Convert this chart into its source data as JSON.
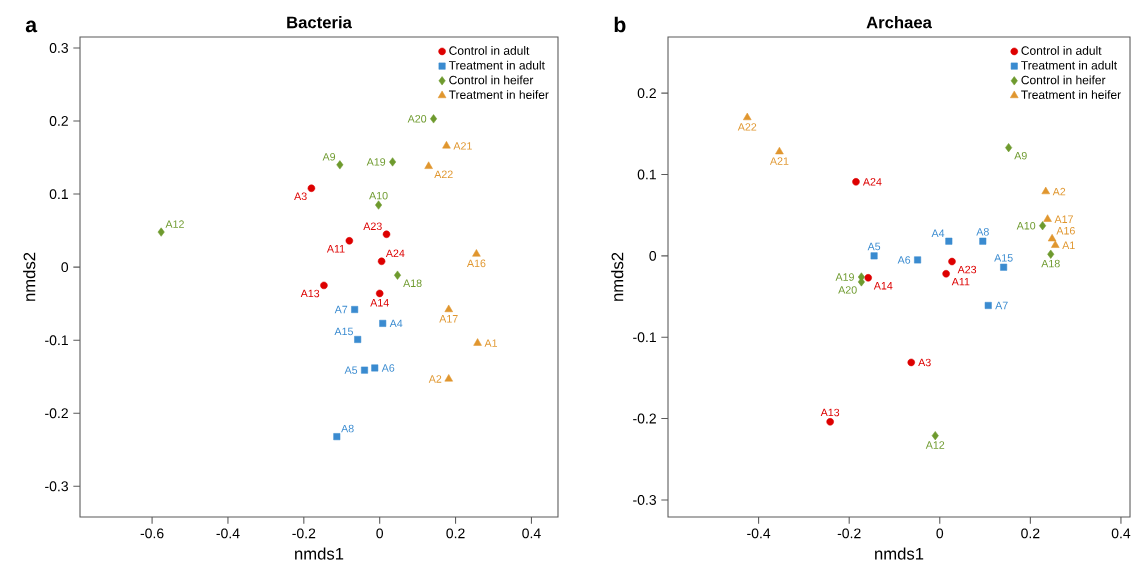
{
  "chart_data": [
    {
      "type": "scatter",
      "title": "Bacteria",
      "xlabel": "nmds1",
      "ylabel": "nmds2",
      "xlim": [
        -0.79,
        0.47
      ],
      "ylim": [
        -0.342,
        0.315
      ],
      "xticks": [
        -0.6,
        -0.4,
        -0.2,
        0,
        0.2,
        0.4
      ],
      "yticks": [
        -0.3,
        -0.2,
        -0.1,
        0,
        0.1,
        0.2,
        0.3
      ],
      "grid": false,
      "legend": "top right",
      "series": [
        {
          "name": "Control in adult",
          "color": "#dd0000",
          "marker": "circle",
          "x": [
            -0.18,
            0.018,
            -0.08,
            0.005,
            -0.147,
            0.0
          ],
          "values": [
            0.108,
            0.045,
            0.036,
            0.008,
            -0.025,
            -0.036
          ]
        },
        {
          "name": "Treatment in adult",
          "color": "#3a8bd0",
          "marker": "square",
          "x": [
            -0.066,
            0.008,
            -0.058,
            -0.04,
            -0.013,
            -0.113
          ],
          "values": [
            -0.058,
            -0.077,
            -0.099,
            -0.141,
            -0.138,
            -0.232
          ]
        },
        {
          "name": "Control in heifer",
          "color": "#6e9a2e",
          "marker": "diamond",
          "x": [
            -0.576,
            0.142,
            -0.105,
            0.034,
            -0.003,
            0.047
          ],
          "values": [
            0.048,
            0.203,
            0.14,
            0.144,
            0.085,
            -0.011
          ]
        },
        {
          "name": "Treatment in heifer",
          "color": "#e0962e",
          "marker": "triangle",
          "x": [
            0.176,
            0.129,
            0.255,
            0.182,
            0.258,
            0.182
          ],
          "values": [
            0.166,
            0.138,
            0.018,
            -0.058,
            -0.104,
            -0.153
          ]
        }
      ],
      "annotations": [
        "a",
        {
          "text": "A3",
          "x": -0.18,
          "y": 0.108
        },
        {
          "text": "A23",
          "x": 0.018,
          "y": 0.045
        },
        {
          "text": "A11",
          "x": -0.08,
          "y": 0.036
        },
        {
          "text": "A24",
          "x": 0.005,
          "y": 0.008
        },
        {
          "text": "A13",
          "x": -0.147,
          "y": -0.025
        },
        {
          "text": "A14",
          "x": 0.0,
          "y": -0.036
        },
        {
          "text": "A7",
          "x": -0.066,
          "y": -0.058
        },
        {
          "text": "A4",
          "x": 0.008,
          "y": -0.077
        },
        {
          "text": "A15",
          "x": -0.058,
          "y": -0.099
        },
        {
          "text": "A5",
          "x": -0.04,
          "y": -0.141
        },
        {
          "text": "A6",
          "x": -0.013,
          "y": -0.138
        },
        {
          "text": "A8",
          "x": -0.113,
          "y": -0.232
        },
        {
          "text": "A12",
          "x": -0.576,
          "y": 0.048
        },
        {
          "text": "A20",
          "x": 0.142,
          "y": 0.203
        },
        {
          "text": "A9",
          "x": -0.105,
          "y": 0.14
        },
        {
          "text": "A19",
          "x": 0.034,
          "y": 0.144
        },
        {
          "text": "A10",
          "x": -0.003,
          "y": 0.085
        },
        {
          "text": "A18",
          "x": 0.047,
          "y": -0.011
        },
        {
          "text": "A21",
          "x": 0.176,
          "y": 0.166
        },
        {
          "text": "A22",
          "x": 0.129,
          "y": 0.138
        },
        {
          "text": "A16",
          "x": 0.255,
          "y": 0.018
        },
        {
          "text": "A17",
          "x": 0.182,
          "y": -0.058
        },
        {
          "text": "A1",
          "x": 0.258,
          "y": -0.104
        },
        {
          "text": "A2",
          "x": 0.182,
          "y": -0.153
        }
      ]
    },
    {
      "type": "scatter",
      "title": "Archaea",
      "xlabel": "nmds1",
      "ylabel": "nmds2",
      "xlim": [
        -0.6,
        0.42
      ],
      "ylim": [
        -0.321,
        0.269
      ],
      "xticks": [
        -0.4,
        -0.2,
        0,
        0.2,
        0.4
      ],
      "yticks": [
        -0.3,
        -0.2,
        -0.1,
        0,
        0.1,
        0.2
      ],
      "grid": false,
      "legend": "top right",
      "series": [
        {
          "name": "Control in adult",
          "color": "#dd0000",
          "marker": "circle",
          "x": [
            -0.185,
            -0.158,
            -0.242,
            0.027,
            0.014,
            -0.063
          ],
          "values": [
            0.091,
            -0.027,
            -0.204,
            -0.007,
            -0.022,
            -0.131
          ]
        },
        {
          "name": "Treatment in adult",
          "color": "#3a8bd0",
          "marker": "square",
          "x": [
            -0.145,
            0.02,
            0.095,
            -0.049,
            0.141,
            0.107
          ],
          "values": [
            0.0,
            0.018,
            0.018,
            -0.005,
            -0.014,
            -0.061
          ]
        },
        {
          "name": "Control in heifer",
          "color": "#6e9a2e",
          "marker": "diamond",
          "x": [
            0.152,
            0.227,
            0.245,
            -0.173,
            -0.173,
            -0.01
          ],
          "values": [
            0.133,
            0.037,
            0.002,
            -0.026,
            -0.032,
            -0.221
          ]
        },
        {
          "name": "Treatment in heifer",
          "color": "#e0962e",
          "marker": "triangle",
          "x": [
            -0.425,
            -0.354,
            0.234,
            0.238,
            0.248,
            0.255
          ],
          "values": [
            0.17,
            0.128,
            0.079,
            0.045,
            0.021,
            0.013
          ]
        }
      ],
      "annotations": [
        "b",
        {
          "text": "A24",
          "x": -0.185,
          "y": 0.091
        },
        {
          "text": "A14",
          "x": -0.158,
          "y": -0.027
        },
        {
          "text": "A13",
          "x": -0.242,
          "y": -0.204
        },
        {
          "text": "A23",
          "x": 0.027,
          "y": -0.007
        },
        {
          "text": "A11",
          "x": 0.014,
          "y": -0.022
        },
        {
          "text": "A3",
          "x": -0.063,
          "y": -0.131
        },
        {
          "text": "A5",
          "x": -0.145,
          "y": 0.0
        },
        {
          "text": "A4",
          "x": 0.02,
          "y": 0.018
        },
        {
          "text": "A8",
          "x": 0.095,
          "y": 0.018
        },
        {
          "text": "A6",
          "x": -0.049,
          "y": -0.005
        },
        {
          "text": "A15",
          "x": 0.141,
          "y": -0.014
        },
        {
          "text": "A7",
          "x": 0.107,
          "y": -0.061
        },
        {
          "text": "A9",
          "x": 0.152,
          "y": 0.133
        },
        {
          "text": "A10",
          "x": 0.227,
          "y": 0.037
        },
        {
          "text": "A18",
          "x": 0.245,
          "y": 0.002
        },
        {
          "text": "A19",
          "x": -0.173,
          "y": -0.026
        },
        {
          "text": "A20",
          "x": -0.173,
          "y": -0.032
        },
        {
          "text": "A12",
          "x": -0.01,
          "y": -0.221
        },
        {
          "text": "A22",
          "x": -0.425,
          "y": 0.17
        },
        {
          "text": "A21",
          "x": -0.354,
          "y": 0.128
        },
        {
          "text": "A2",
          "x": 0.234,
          "y": 0.079
        },
        {
          "text": "A17",
          "x": 0.238,
          "y": 0.045
        },
        {
          "text": "A16",
          "x": 0.248,
          "y": 0.021
        },
        {
          "text": "A1",
          "x": 0.255,
          "y": 0.013
        }
      ]
    }
  ]
}
